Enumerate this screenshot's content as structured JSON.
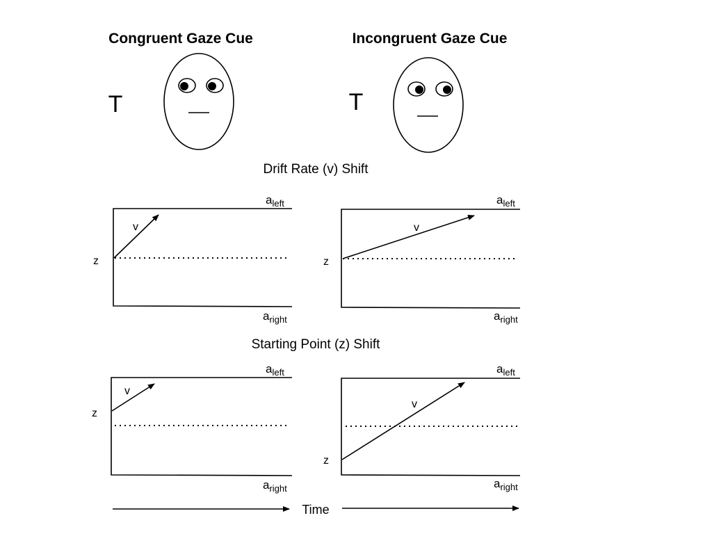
{
  "panels": {
    "congruent": {
      "title": "Congruent Gaze Cue",
      "target": "T"
    },
    "incongruent": {
      "title": "Incongruent Gaze Cue",
      "target": "T"
    }
  },
  "sections": {
    "drift": "Drift Rate (v) Shift",
    "start": "Starting Point (z) Shift"
  },
  "labels": {
    "upper_bound": "a",
    "upper_sub": "left",
    "lower_bound": "a",
    "lower_sub": "right",
    "drift": "v",
    "start": "z",
    "time": "Time"
  }
}
